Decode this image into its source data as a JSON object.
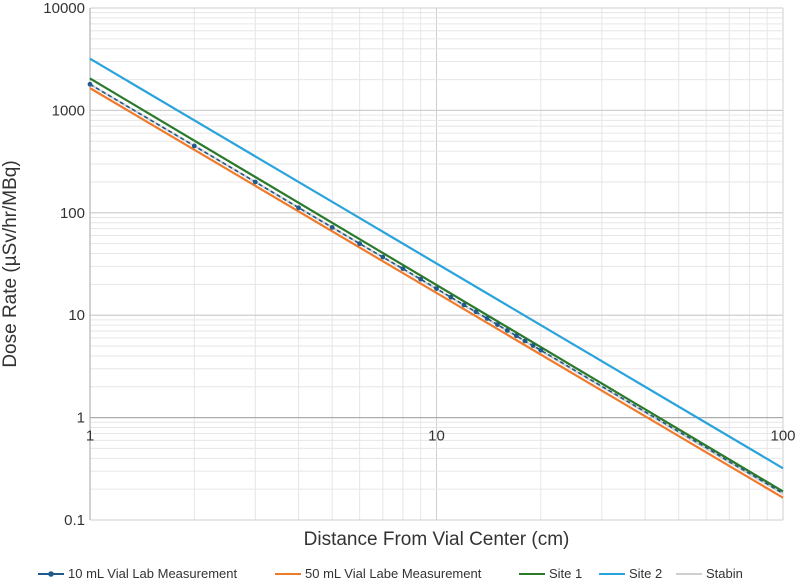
{
  "chart_data": {
    "type": "line",
    "title": "",
    "xlabel": "Distance From Vial Center (cm)",
    "ylabel": "Dose Rate (µSv/hr/MBq)",
    "xscale": "log",
    "yscale": "log",
    "xlim": [
      1,
      100
    ],
    "ylim": [
      0.1,
      10000
    ],
    "x_ticks": [
      1,
      10,
      100
    ],
    "x_tick_labels": [
      "1",
      "10",
      "100"
    ],
    "y_ticks": [
      0.1,
      1,
      10,
      100,
      1000,
      10000
    ],
    "y_tick_labels": [
      "0.1",
      "1",
      "10",
      "100",
      "1000",
      "10000"
    ],
    "grid": "major and minor",
    "legend_position": "bottom",
    "series": [
      {
        "name": "10 mL Vial Lab Measurement",
        "color": "#1f5a8a",
        "style": "dashed-markers",
        "x": [
          1,
          2,
          3,
          4,
          5,
          6,
          7,
          8,
          9,
          10,
          11,
          12,
          13,
          14,
          15,
          16,
          17,
          18,
          19,
          20,
          22,
          24,
          26,
          28,
          30,
          35,
          40,
          50,
          60,
          70,
          80,
          90,
          100
        ],
        "y": [
          1800,
          450,
          200,
          112,
          72,
          50,
          37,
          28.5,
          22.5,
          18.2,
          15,
          12.6,
          10.8,
          9.3,
          8.1,
          7.1,
          6.3,
          5.6,
          5.05,
          4.55,
          3.76,
          3.16,
          2.69,
          2.32,
          2.02,
          1.49,
          1.14,
          0.73,
          0.51,
          0.37,
          0.285,
          0.225,
          0.182
        ]
      },
      {
        "name": "50 mL Vial Labe Measurement",
        "color": "#f07a2b",
        "style": "solid",
        "x": [
          1,
          100
        ],
        "y": [
          1650,
          0.165
        ]
      },
      {
        "name": "Site 1",
        "color": "#2a7a2a",
        "style": "solid",
        "x": [
          1,
          100
        ],
        "y": [
          2050,
          0.19
        ]
      },
      {
        "name": "Site 2",
        "color": "#29a3dc",
        "style": "solid",
        "x": [
          1,
          100
        ],
        "y": [
          3200,
          0.32
        ]
      },
      {
        "name": "Stabin",
        "color": "#cfcfcf",
        "style": "solid",
        "x": [
          1,
          100
        ],
        "y": [
          1800,
          0.18
        ]
      }
    ]
  }
}
